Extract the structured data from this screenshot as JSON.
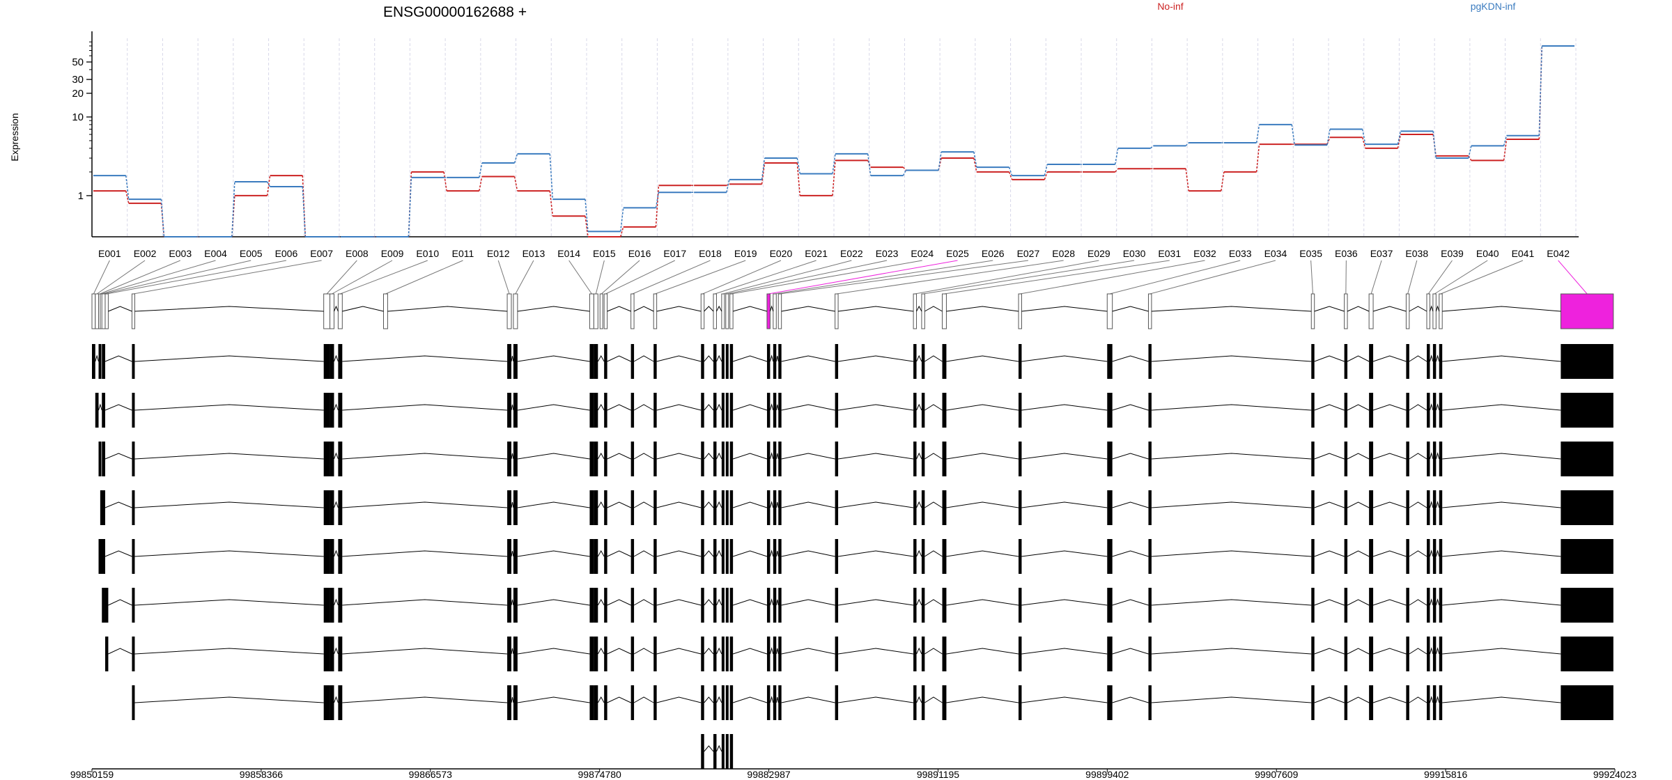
{
  "figure": {
    "title": "ENSG00000162688 +",
    "ylabel": "Expression"
  },
  "colors": {
    "no_inf": "#cc2222",
    "pgkdn_inf": "#3a7bbf",
    "highlight_exon": "#ee22dd",
    "exon_fill": "#000000",
    "grid": "#d8d8e8"
  },
  "chart_data": {
    "type": "line",
    "title": "ENSG00000162688 +",
    "ylabel": "Expression",
    "xlabel": "",
    "yscale": "log",
    "ylim": [
      0.3,
      100
    ],
    "yticks": [
      1,
      10,
      20,
      30,
      50
    ],
    "grid": "vertical-only",
    "legend_placement": "top-right",
    "categories": [
      "E001",
      "E002",
      "E003",
      "E004",
      "E005",
      "E006",
      "E007",
      "E008",
      "E009",
      "E010",
      "E011",
      "E012",
      "E013",
      "E014",
      "E015",
      "E016",
      "E017",
      "E018",
      "E019",
      "E020",
      "E021",
      "E022",
      "E023",
      "E024",
      "E025",
      "E026",
      "E027",
      "E028",
      "E029",
      "E030",
      "E031",
      "E032",
      "E033",
      "E034",
      "E035",
      "E036",
      "E037",
      "E038",
      "E039",
      "E040",
      "E041",
      "E042"
    ],
    "series": [
      {
        "name": "No-inf",
        "color": "#cc2222",
        "values": [
          1.15,
          0.8,
          0.3,
          0.3,
          1.0,
          1.8,
          0.3,
          0.3,
          0.3,
          2.0,
          1.15,
          1.75,
          1.15,
          0.55,
          0.3,
          0.4,
          1.35,
          1.35,
          1.4,
          2.6,
          1.0,
          2.8,
          2.3,
          2.1,
          3.0,
          2.0,
          1.6,
          2.0,
          2.0,
          2.2,
          2.2,
          1.15,
          2.0,
          4.5,
          4.5,
          5.5,
          4.0,
          6.0,
          3.2,
          2.8,
          5.2,
          80
        ]
      },
      {
        "name": "pgKDN-inf",
        "color": "#3a7bbf",
        "values": [
          1.8,
          0.9,
          0.3,
          0.3,
          1.5,
          1.3,
          0.3,
          0.3,
          0.3,
          1.7,
          1.7,
          2.6,
          3.4,
          0.9,
          0.35,
          0.7,
          1.1,
          1.1,
          1.6,
          3.0,
          1.9,
          3.4,
          1.8,
          2.1,
          3.6,
          2.3,
          1.8,
          2.5,
          2.5,
          4.0,
          4.3,
          4.7,
          4.7,
          8.0,
          4.4,
          7.0,
          4.5,
          6.6,
          3.0,
          4.3,
          5.8,
          80
        ]
      }
    ]
  },
  "gene_model": {
    "genomic_ticks": [
      "99850159",
      "99858366",
      "99866573",
      "99874780",
      "99882987",
      "99891195",
      "99899402",
      "99907609",
      "99915816",
      "99924023"
    ],
    "start": 99850159,
    "end": 99924023,
    "exon_bins": [
      {
        "id": "E001",
        "start": 99850159,
        "end": 99850320
      },
      {
        "id": "E002",
        "start": 99850320,
        "end": 99850480
      },
      {
        "id": "E003",
        "start": 99850480,
        "end": 99850560
      },
      {
        "id": "E004",
        "start": 99850560,
        "end": 99850640
      },
      {
        "id": "E005",
        "start": 99850640,
        "end": 99850800
      },
      {
        "id": "E006",
        "start": 99850800,
        "end": 99850950
      },
      {
        "id": "E007",
        "start": 99852100,
        "end": 99852220
      },
      {
        "id": "E008",
        "start": 99861400,
        "end": 99861700
      },
      {
        "id": "E009",
        "start": 99861700,
        "end": 99861900
      },
      {
        "id": "E010",
        "start": 99862100,
        "end": 99862300
      },
      {
        "id": "E011",
        "start": 99864300,
        "end": 99864500
      },
      {
        "id": "E012",
        "start": 99870300,
        "end": 99870500
      },
      {
        "id": "E013",
        "start": 99870600,
        "end": 99870800
      },
      {
        "id": "E014",
        "start": 99874300,
        "end": 99874500
      },
      {
        "id": "E015",
        "start": 99874500,
        "end": 99874700
      },
      {
        "id": "E016",
        "start": 99874800,
        "end": 99874900
      },
      {
        "id": "E017",
        "start": 99875000,
        "end": 99875150
      },
      {
        "id": "E018",
        "start": 99876300,
        "end": 99876450
      },
      {
        "id": "E019",
        "start": 99877400,
        "end": 99877550
      },
      {
        "id": "E020",
        "start": 99879700,
        "end": 99879850
      },
      {
        "id": "E021",
        "start": 99880300,
        "end": 99880450
      },
      {
        "id": "E022",
        "start": 99880700,
        "end": 99880800
      },
      {
        "id": "E023",
        "start": 99880900,
        "end": 99881000
      },
      {
        "id": "E024",
        "start": 99881100,
        "end": 99881250
      },
      {
        "id": "E025",
        "start": 99882900,
        "end": 99883050
      },
      {
        "id": "E026",
        "start": 99883200,
        "end": 99883350
      },
      {
        "id": "E027",
        "start": 99883450,
        "end": 99883600
      },
      {
        "id": "E028",
        "start": 99886200,
        "end": 99886350
      },
      {
        "id": "E029",
        "start": 99890000,
        "end": 99890150
      },
      {
        "id": "E030",
        "start": 99890400,
        "end": 99890550
      },
      {
        "id": "E031",
        "start": 99891400,
        "end": 99891600
      },
      {
        "id": "E032",
        "start": 99895100,
        "end": 99895250
      },
      {
        "id": "E033",
        "start": 99899400,
        "end": 99899650
      },
      {
        "id": "E034",
        "start": 99901400,
        "end": 99901550
      },
      {
        "id": "E035",
        "start": 99909300,
        "end": 99909450
      },
      {
        "id": "E036",
        "start": 99910900,
        "end": 99911050
      },
      {
        "id": "E037",
        "start": 99912100,
        "end": 99912300
      },
      {
        "id": "E038",
        "start": 99913900,
        "end": 99914050
      },
      {
        "id": "E039",
        "start": 99914900,
        "end": 99915050
      },
      {
        "id": "E040",
        "start": 99915200,
        "end": 99915350
      },
      {
        "id": "E041",
        "start": 99915500,
        "end": 99915650
      },
      {
        "id": "E042",
        "start": 99921400,
        "end": 99923950
      }
    ],
    "highlight_bins": [
      "E025",
      "E042"
    ],
    "transcripts": [
      {
        "exons": [
          "E001",
          "E003",
          "E005",
          "E007",
          "E008",
          "E009",
          "E010",
          "E012",
          "E013",
          "E014",
          "E015",
          "E017",
          "E018",
          "E019",
          "E020",
          "E021",
          "E022",
          "E023",
          "E024",
          "E025",
          "E026",
          "E027",
          "E028",
          "E029",
          "E030",
          "E031",
          "E032",
          "E033",
          "E034",
          "E035",
          "E036",
          "E037",
          "E038",
          "E039",
          "E040",
          "E041",
          "E042"
        ]
      },
      {
        "exons": [
          "E002",
          "E005",
          "E007",
          "E008",
          "E009",
          "E010",
          "E012",
          "E013",
          "E014",
          "E015",
          "E017",
          "E018",
          "E019",
          "E020",
          "E021",
          "E022",
          "E023",
          "E024",
          "E025",
          "E026",
          "E027",
          "E028",
          "E029",
          "E030",
          "E031",
          "E032",
          "E033",
          "E034",
          "E035",
          "E036",
          "E037",
          "E038",
          "E039",
          "E040",
          "E041",
          "E042"
        ]
      },
      {
        "exons": [
          "E003",
          "E005",
          "E007",
          "E008",
          "E009",
          "E010",
          "E012",
          "E013",
          "E014",
          "E015",
          "E017",
          "E018",
          "E019",
          "E020",
          "E021",
          "E022",
          "E023",
          "E024",
          "E025",
          "E026",
          "E027",
          "E028",
          "E029",
          "E030",
          "E031",
          "E032",
          "E033",
          "E034",
          "E035",
          "E036",
          "E037",
          "E038",
          "E039",
          "E040",
          "E041",
          "E042"
        ]
      },
      {
        "exons": [
          "E004",
          "E005",
          "E007",
          "E008",
          "E009",
          "E010",
          "E012",
          "E013",
          "E014",
          "E015",
          "E017",
          "E018",
          "E019",
          "E020",
          "E021",
          "E022",
          "E023",
          "E024",
          "E025",
          "E026",
          "E027",
          "E028",
          "E029",
          "E030",
          "E031",
          "E032",
          "E033",
          "E034",
          "E035",
          "E036",
          "E037",
          "E038",
          "E039",
          "E040",
          "E041",
          "E042"
        ]
      },
      {
        "exons": [
          "E003",
          "E004",
          "E005",
          "E007",
          "E008",
          "E009",
          "E010",
          "E012",
          "E013",
          "E014",
          "E015",
          "E017",
          "E018",
          "E019",
          "E020",
          "E021",
          "E022",
          "E023",
          "E024",
          "E025",
          "E026",
          "E027",
          "E028",
          "E029",
          "E030",
          "E031",
          "E032",
          "E033",
          "E034",
          "E035",
          "E036",
          "E037",
          "E038",
          "E039",
          "E040",
          "E041",
          "E042"
        ]
      },
      {
        "exons": [
          "E005",
          "E006",
          "E007",
          "E008",
          "E009",
          "E010",
          "E012",
          "E013",
          "E014",
          "E015",
          "E017",
          "E018",
          "E019",
          "E020",
          "E021",
          "E022",
          "E023",
          "E024",
          "E025",
          "E026",
          "E027",
          "E028",
          "E029",
          "E030",
          "E031",
          "E032",
          "E033",
          "E034",
          "E035",
          "E036",
          "E037",
          "E038",
          "E039",
          "E040",
          "E041",
          "E042"
        ]
      },
      {
        "exons": [
          "E006",
          "E007",
          "E008",
          "E009",
          "E010",
          "E012",
          "E013",
          "E014",
          "E015",
          "E017",
          "E018",
          "E019",
          "E020",
          "E021",
          "E022",
          "E023",
          "E024",
          "E025",
          "E026",
          "E027",
          "E028",
          "E029",
          "E030",
          "E031",
          "E032",
          "E033",
          "E034",
          "E035",
          "E036",
          "E037",
          "E038",
          "E039",
          "E040",
          "E041",
          "E042"
        ]
      },
      {
        "exons": [
          "E007",
          "E008",
          "E009",
          "E010",
          "E012",
          "E013",
          "E014",
          "E015",
          "E017",
          "E018",
          "E019",
          "E020",
          "E021",
          "E022",
          "E023",
          "E024",
          "E025",
          "E026",
          "E027",
          "E028",
          "E029",
          "E030",
          "E031",
          "E032",
          "E033",
          "E034",
          "E035",
          "E036",
          "E037",
          "E038",
          "E039",
          "E040",
          "E041",
          "E042"
        ]
      },
      {
        "exons": [
          "E020",
          "E021",
          "E022",
          "E023",
          "E024"
        ]
      }
    ]
  }
}
